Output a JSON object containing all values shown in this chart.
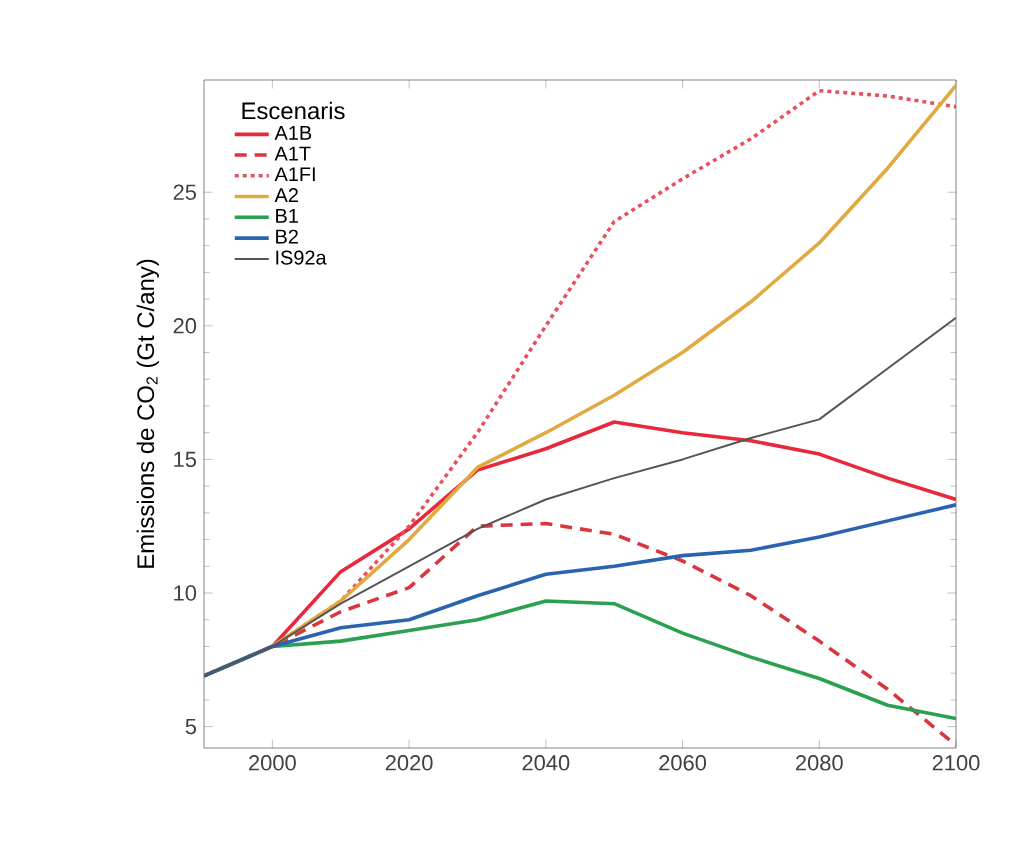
{
  "chart_data": {
    "type": "line",
    "ylabel": "Emissions de CO$_{2}$ (Gt C/any)",
    "legend_title": "Escenaris",
    "legend": "top left",
    "grid": false,
    "x": [
      1990,
      2000,
      2010,
      2020,
      2030,
      2040,
      2050,
      2060,
      2070,
      2080,
      2090,
      2100
    ],
    "xlim": [
      1990,
      2100
    ],
    "xticks": [
      2000,
      2020,
      2040,
      2060,
      2080,
      2100
    ],
    "ylim": [
      4.2,
      29.2
    ],
    "yticks": [
      5,
      10,
      15,
      20,
      25
    ],
    "series": [
      {
        "name": "A1B",
        "color": "#e8283c",
        "line_style": "solid",
        "values": [
          6.9,
          8.0,
          10.8,
          12.4,
          14.6,
          15.4,
          16.4,
          16.0,
          15.7,
          15.2,
          14.3,
          13.5
        ]
      },
      {
        "name": "A1T",
        "color": "#d9363e",
        "line_style": "dashed",
        "values": [
          6.9,
          8.0,
          9.3,
          10.2,
          12.5,
          12.6,
          12.2,
          11.2,
          9.9,
          8.2,
          6.4,
          4.3
        ]
      },
      {
        "name": "A1FI",
        "color": "#e8505e",
        "line_style": "dotted",
        "values": [
          6.9,
          8.0,
          9.7,
          12.5,
          16.0,
          20.0,
          23.9,
          25.5,
          27.0,
          28.8,
          28.6,
          28.2
        ]
      },
      {
        "name": "A2",
        "color": "#e0aa40",
        "line_style": "solid",
        "values": [
          6.9,
          8.0,
          9.7,
          12.0,
          14.7,
          16.0,
          17.4,
          19.0,
          20.9,
          23.1,
          25.9,
          29.0
        ]
      },
      {
        "name": "B1",
        "color": "#2aa050",
        "line_style": "solid",
        "values": [
          6.9,
          8.0,
          8.2,
          8.6,
          9.0,
          9.7,
          9.6,
          8.5,
          7.6,
          6.8,
          5.8,
          5.3
        ]
      },
      {
        "name": "B2",
        "color": "#2a64b0",
        "line_style": "solid",
        "values": [
          6.9,
          8.0,
          8.7,
          9.0,
          9.9,
          10.7,
          11.0,
          11.4,
          11.6,
          12.1,
          12.7,
          13.3
        ]
      },
      {
        "name": "IS92a",
        "color": "#555555",
        "line_style": "solid",
        "values": [
          6.9,
          8.0,
          9.6,
          11.0,
          12.4,
          13.5,
          14.3,
          15.0,
          15.8,
          16.5,
          18.4,
          20.3
        ]
      }
    ]
  }
}
